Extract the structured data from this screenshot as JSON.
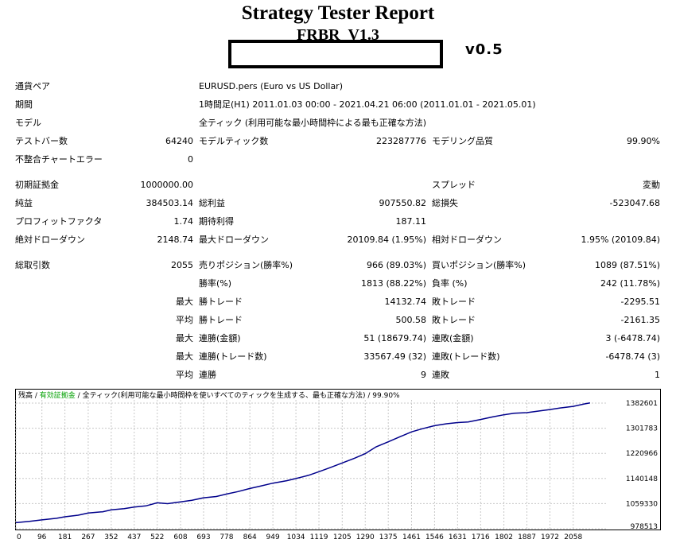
{
  "header": {
    "title": "Strategy Tester Report",
    "subtitle": "FRBR_V1.3",
    "version": "v0.5"
  },
  "rows": {
    "symbol": {
      "label": "通貨ペア",
      "value": "EURUSD.pers (Euro vs US Dollar)"
    },
    "period": {
      "label": "期間",
      "value": "1時間足(H1) 2011.01.03 00:00 - 2021.04.21 06:00 (2011.01.01 - 2021.05.01)"
    },
    "model": {
      "label": "モデル",
      "value": "全ティック (利用可能な最小時間枠による最も正確な方法)"
    },
    "bars": {
      "label": "テストバー数",
      "value": "64240",
      "label2": "モデルティック数",
      "value2": "223287776",
      "label3": "モデリング品質",
      "value3": "99.90%"
    },
    "mismatch": {
      "label": "不整合チャートエラー",
      "value": "0"
    },
    "deposit": {
      "label": "初期証拠金",
      "value": "1000000.00",
      "label3": "スプレッド",
      "value3": "変動"
    },
    "netprofit": {
      "label": "純益",
      "value": "384503.14",
      "label2": "総利益",
      "value2": "907550.82",
      "label3": "総損失",
      "value3": "-523047.68"
    },
    "profitfactor": {
      "label": "プロフィットファクタ",
      "value": "1.74",
      "label2": "期待利得",
      "value2": "187.11"
    },
    "drawdown": {
      "label": "絶対ドローダウン",
      "value": "2148.74",
      "label2": "最大ドローダウン",
      "value2": "20109.84 (1.95%)",
      "label3": "相対ドローダウン",
      "value3": "1.95% (20109.84)"
    },
    "trades": {
      "label": "総取引数",
      "value": "2055",
      "label2": "売りポジション(勝率%)",
      "value2": "966 (89.03%)",
      "label3": "買いポジション(勝率%)",
      "value3": "1089 (87.51%)"
    },
    "winrate": {
      "label2": "勝率(%)",
      "value2": "1813 (88.22%)",
      "label3": "負率 (%)",
      "value3": "242 (11.78%)"
    },
    "maxtrade": {
      "prefix": "最大",
      "label2": "勝トレード",
      "value2": "14132.74",
      "label3": "敗トレード",
      "value3": "-2295.51"
    },
    "avgtrade": {
      "prefix": "平均",
      "label2": "勝トレード",
      "value2": "500.58",
      "label3": "敗トレード",
      "value3": "-2161.35"
    },
    "maxconsec": {
      "prefix": "最大",
      "label2": "連勝(金額)",
      "value2": "51 (18679.74)",
      "label3": "連敗(金額)",
      "value3": "3 (-6478.74)"
    },
    "maxconsecprofit": {
      "prefix": "最大",
      "label2": "連勝(トレード数)",
      "value2": "33567.49 (32)",
      "label3": "連敗(トレード数)",
      "value3": "-6478.74 (3)"
    },
    "avgconsec": {
      "prefix": "平均",
      "label2": "連勝",
      "value2": "9",
      "label3": "連敗",
      "value3": "1"
    }
  },
  "chart_data": {
    "type": "line",
    "legend": {
      "balance": "残高",
      "sep1": " / ",
      "equity": "有効証拠金",
      "sep2": " / ",
      "model": "全ティック(利用可能な最小時間枠を使いすべてのティックを生成する、最も正確な方法)",
      "sep3": " / ",
      "quality": "99.90%"
    },
    "x_ticks": [
      0,
      96,
      181,
      267,
      352,
      437,
      522,
      608,
      693,
      778,
      864,
      949,
      1034,
      1119,
      1205,
      1290,
      1375,
      1461,
      1546,
      1631,
      1716,
      1802,
      1887,
      1972,
      2058
    ],
    "y_ticks": [
      978513,
      1059330,
      1140148,
      1220966,
      1301783,
      1382601
    ],
    "xlim": [
      0,
      2185
    ],
    "ylim": [
      978513,
      1395000
    ],
    "series": [
      {
        "color": "#00008b",
        "x": [
          0,
          50,
          96,
          150,
          181,
          230,
          267,
          320,
          352,
          400,
          437,
          480,
          522,
          560,
          608,
          650,
          693,
          740,
          778,
          820,
          864,
          900,
          949,
          1000,
          1034,
          1080,
          1119,
          1160,
          1205,
          1250,
          1290,
          1330,
          1375,
          1420,
          1461,
          1500,
          1546,
          1590,
          1631,
          1670,
          1716,
          1760,
          1802,
          1840,
          1887,
          1930,
          1972,
          2010,
          2058,
          2100,
          2120
        ],
        "y": [
          998000,
          1002000,
          1007000,
          1012000,
          1017000,
          1022000,
          1029000,
          1033000,
          1039000,
          1043000,
          1048000,
          1052000,
          1062000,
          1059000,
          1065000,
          1070000,
          1078000,
          1082000,
          1090000,
          1098000,
          1108000,
          1115000,
          1125000,
          1133000,
          1140000,
          1150000,
          1162000,
          1175000,
          1190000,
          1205000,
          1220000,
          1242000,
          1258000,
          1275000,
          1290000,
          1300000,
          1310000,
          1316000,
          1320000,
          1322000,
          1330000,
          1338000,
          1345000,
          1350000,
          1352000,
          1357000,
          1362000,
          1367000,
          1372000,
          1380000,
          1383000
        ]
      }
    ]
  }
}
